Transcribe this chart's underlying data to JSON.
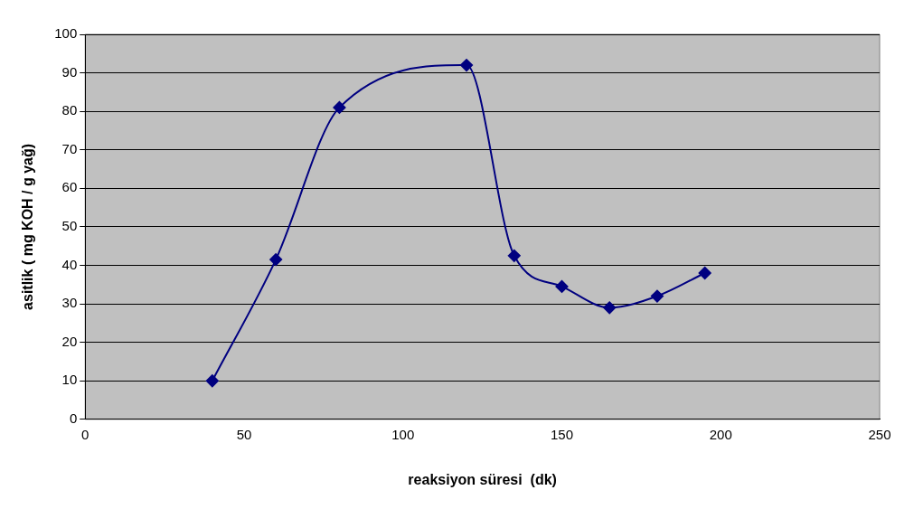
{
  "chart_data": {
    "type": "line",
    "xlabel": "reaksiyon süresi  (dk)",
    "ylabel": "asitlik ( mg KOH / g yağ)",
    "x": [
      40,
      60,
      80,
      120,
      135,
      150,
      165,
      180,
      195
    ],
    "series": [
      {
        "color": "#000080",
        "values": [
          10,
          41.5,
          81,
          92,
          42.5,
          34.5,
          29,
          32,
          38
        ]
      }
    ],
    "xlim": [
      0,
      250
    ],
    "xticks": [
      0,
      50,
      100,
      150,
      200,
      250
    ],
    "ylim": [
      0,
      100
    ],
    "yticks": [
      0,
      10,
      20,
      30,
      40,
      50,
      60,
      70,
      80,
      90,
      100
    ],
    "grid": "y",
    "legend": false,
    "marker": "diamond",
    "line_style": "solid"
  }
}
